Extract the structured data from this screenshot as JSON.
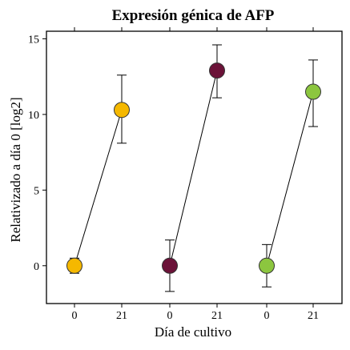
{
  "chart_data": {
    "type": "scatter",
    "title": "Expresión génica de AFP",
    "xlabel": "Día de cultivo",
    "ylabel": "Relativizado a día 0 [log2]",
    "ylim": [
      -2.5,
      15.5
    ],
    "yticks": [
      0,
      5,
      10,
      15
    ],
    "xtick_labels": [
      "0",
      "21",
      "0",
      "21",
      "0",
      "21"
    ],
    "grid": false,
    "series": [
      {
        "color": "#f5b800",
        "points": [
          {
            "x": "0",
            "y": 0.0,
            "err_low": -0.5,
            "err_high": 0.5
          },
          {
            "x": "21",
            "y": 10.3,
            "err_low": 8.1,
            "err_high": 12.6
          }
        ]
      },
      {
        "color": "#6b1238",
        "points": [
          {
            "x": "0",
            "y": 0.0,
            "err_low": -1.7,
            "err_high": 1.7
          },
          {
            "x": "21",
            "y": 12.9,
            "err_low": 11.1,
            "err_high": 14.6
          }
        ]
      },
      {
        "color": "#8cc63f",
        "points": [
          {
            "x": "0",
            "y": 0.0,
            "err_low": -1.4,
            "err_high": 1.4
          },
          {
            "x": "21",
            "y": 11.5,
            "err_low": 9.2,
            "err_high": 13.6
          }
        ]
      }
    ]
  }
}
